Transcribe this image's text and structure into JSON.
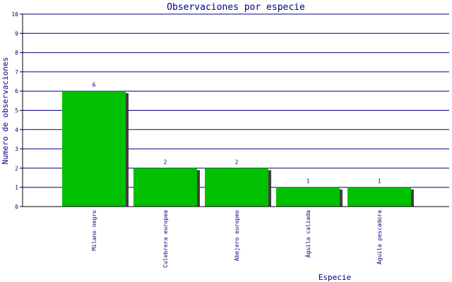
{
  "chart_data": {
    "type": "bar",
    "title": "Observaciones por especie",
    "xlabel": "Especie",
    "ylabel": "Numero de observaciones",
    "categories": [
      "Milano negro",
      "Culebrera europea",
      "Abejero europeo",
      "Águila calzada",
      "Águila pescadora"
    ],
    "values": [
      6,
      2,
      2,
      1,
      1
    ],
    "data_labels": [
      "6",
      "2",
      "2",
      "1",
      "1"
    ],
    "ylim": [
      0,
      10
    ],
    "yticks": [
      "0",
      "1",
      "2",
      "3",
      "4",
      "5",
      "6",
      "7",
      "8",
      "9",
      "10"
    ],
    "grid": true,
    "legend": "none",
    "colors": {
      "bar": "#00c000",
      "bar_shadow": "#404040",
      "grid": "#000080",
      "axis": "#000000",
      "text": "#000080"
    }
  }
}
